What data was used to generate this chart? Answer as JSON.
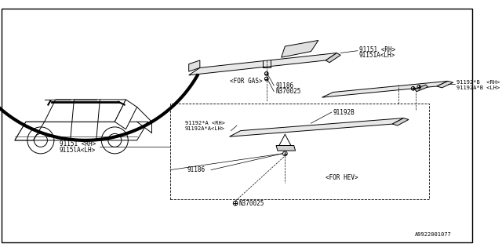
{
  "bg_color": "#ffffff",
  "line_color": "#000000",
  "gray_fill": "#d8d8d8",
  "light_gray": "#eeeeee",
  "font_size": 5.5,
  "font_size_label": 5.0,
  "diagram_id": "A9922001077",
  "labels": {
    "91151_rh": "91151 <RH>",
    "91151a_lh": "91151A<LH>",
    "91186": "91186",
    "n370025": "N370025",
    "for_gas": "<FOR GAS>",
    "91192b_rh": "91192*B  <RH>",
    "91192ab_lh": "91192A*B <LH>",
    "91192a_rh": "91192*A <RH>",
    "91192aa_lh": "91192A*A<LH>",
    "91151_rh2": "91151 <RH>",
    "91151a_lh2": "9115lA<LH>",
    "for_hev": "<FOR HEV>",
    "91192b": "91192B"
  }
}
